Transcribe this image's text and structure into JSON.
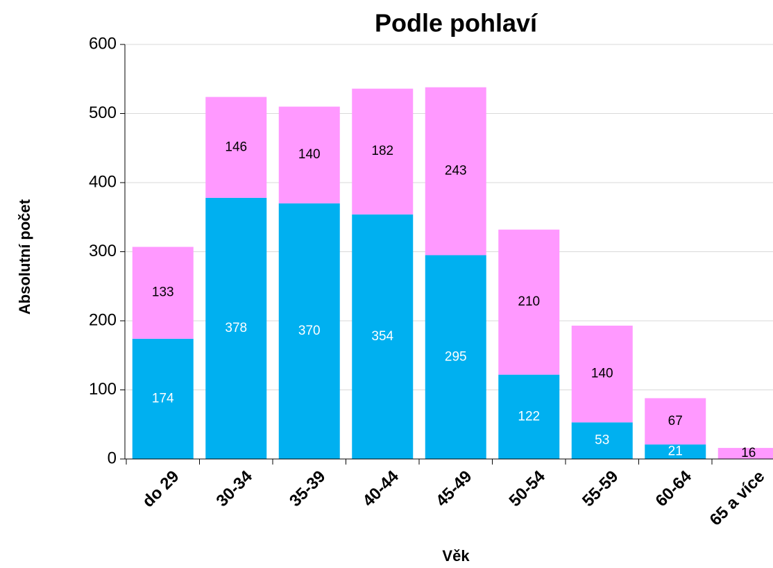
{
  "chart_data": {
    "type": "stacked_bar",
    "title": "Podle pohlaví",
    "x_label": "Věk",
    "y_label": "Absolutní počet",
    "categories": [
      "do 29",
      "30-34",
      "35-39",
      "40-44",
      "45-49",
      "50-54",
      "55-59",
      "60-64",
      "65 a více"
    ],
    "series": [
      {
        "color": "#00b0f0",
        "label_color": "#ffffff",
        "values": [
          174,
          378,
          370,
          354,
          295,
          122,
          53,
          21,
          null
        ]
      },
      {
        "color": "#ff99ff",
        "label_color": "#000000",
        "values": [
          133,
          146,
          140,
          182,
          243,
          210,
          140,
          67,
          16
        ]
      }
    ],
    "ylim": [
      0,
      600
    ],
    "yticks": [
      0,
      100,
      200,
      300,
      400,
      500,
      600
    ],
    "grid": true
  }
}
